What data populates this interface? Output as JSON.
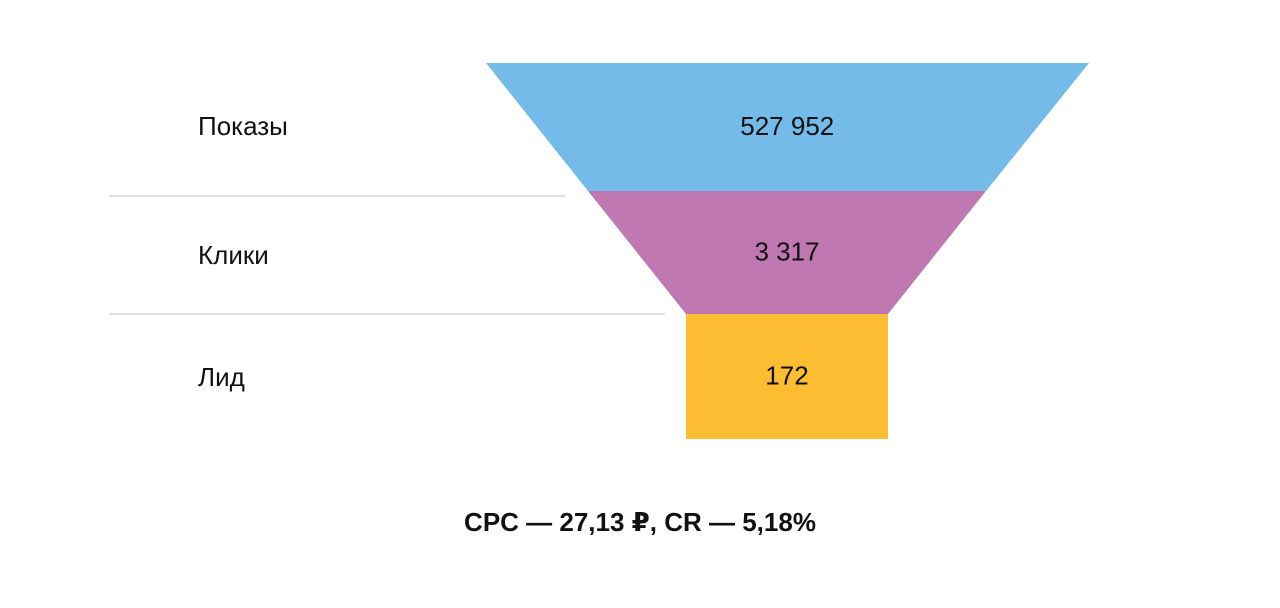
{
  "chart_data": {
    "type": "funnel",
    "stages": [
      {
        "label": "Показы",
        "value": 527952,
        "value_label": "527 952",
        "color": "#75BBEA"
      },
      {
        "label": "Клики",
        "value": 3317,
        "value_label": "3 317",
        "color": "#BF78B2"
      },
      {
        "label": "Лид",
        "value": 172,
        "value_label": "172",
        "color": "#FDBD33"
      }
    ],
    "separator_color": "#CFCFCF"
  },
  "summary": "CPC — 27,13 ₽, CR — 5,18%"
}
